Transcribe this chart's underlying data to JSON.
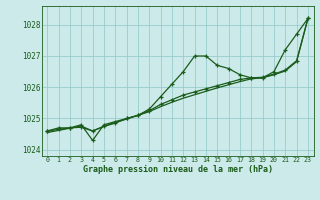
{
  "xlabel": "Graphe pression niveau de la mer (hPa)",
  "hours": [
    0,
    1,
    2,
    3,
    4,
    5,
    6,
    7,
    8,
    9,
    10,
    11,
    12,
    13,
    14,
    15,
    16,
    17,
    18,
    19,
    20,
    21,
    22,
    23
  ],
  "line_main": [
    1024.6,
    1024.7,
    1024.7,
    1024.8,
    1024.3,
    1024.8,
    1024.9,
    1025.0,
    1025.1,
    1025.3,
    1025.7,
    1026.1,
    1026.5,
    1027.0,
    1027.0,
    1026.7,
    1026.6,
    1026.4,
    1026.3,
    1026.3,
    1026.5,
    1027.2,
    1027.7,
    1028.2
  ],
  "line_mid": [
    1024.6,
    1024.65,
    1024.7,
    1024.72,
    1024.6,
    1024.75,
    1024.85,
    1025.0,
    1025.1,
    1025.25,
    1025.45,
    1025.6,
    1025.75,
    1025.85,
    1025.95,
    1026.05,
    1026.15,
    1026.25,
    1026.3,
    1026.32,
    1026.42,
    1026.55,
    1026.85,
    1028.2
  ],
  "line_trend1": [
    1024.55,
    1024.62,
    1024.69,
    1024.76,
    1024.6,
    1024.75,
    1024.88,
    1024.98,
    1025.1,
    1025.22,
    1025.38,
    1025.52,
    1025.65,
    1025.76,
    1025.87,
    1025.98,
    1026.08,
    1026.18,
    1026.27,
    1026.3,
    1026.4,
    1026.52,
    1026.82,
    1028.2
  ],
  "ylim": [
    1023.8,
    1028.6
  ],
  "yticks": [
    1024,
    1025,
    1026,
    1027,
    1028
  ],
  "xticks": [
    0,
    1,
    2,
    3,
    4,
    5,
    6,
    7,
    8,
    9,
    10,
    11,
    12,
    13,
    14,
    15,
    16,
    17,
    18,
    19,
    20,
    21,
    22,
    23
  ],
  "line_color": "#1a5c1a",
  "bg_color": "#cceaea",
  "grid_color": "#99cccc",
  "axis_label_color": "#1a5c1a",
  "tick_color": "#1a5c1a"
}
